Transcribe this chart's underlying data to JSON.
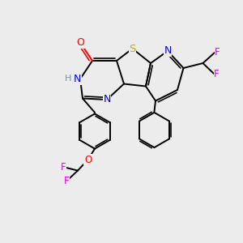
{
  "bg_color": "#ececec",
  "atom_colors": {
    "N": "#0000ee",
    "O": "#ff0000",
    "S": "#ccaa00",
    "F": "#ee00ee",
    "H": "#669999",
    "C": "#000000"
  },
  "lw": 1.4,
  "fs": 8.5
}
